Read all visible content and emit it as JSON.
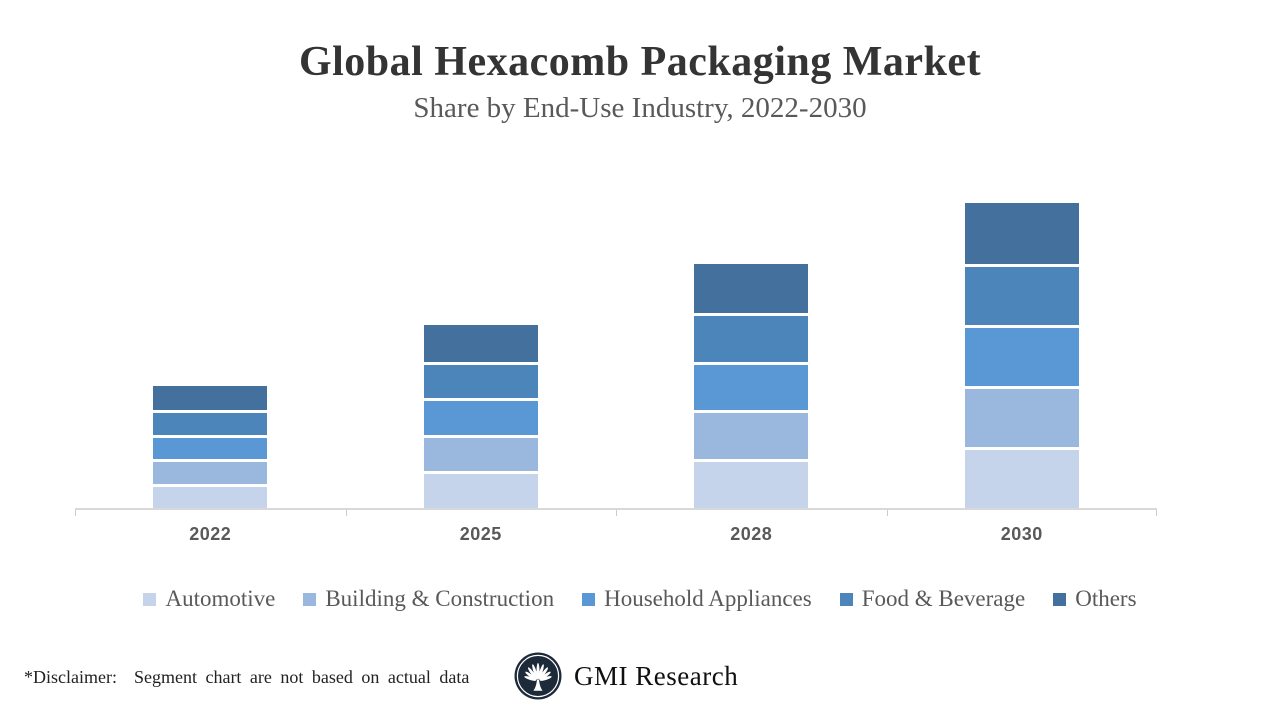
{
  "page": {
    "title": "Global Hexacomb Packaging Market",
    "subtitle": "Share by End-Use Industry, 2022-2030"
  },
  "chart_data": {
    "type": "bar",
    "stacked": true,
    "title": "Global Hexacomb Packaging Market",
    "subtitle": "Share by End-Use Industry, 2022-2030",
    "categories": [
      "2022",
      "2025",
      "2028",
      "2030"
    ],
    "series": [
      {
        "name": "Automotive",
        "color": "#c5d4ea",
        "values": [
          2,
          3,
          4,
          5
        ]
      },
      {
        "name": "Building & Construction",
        "color": "#9ab7de",
        "values": [
          2,
          3,
          4,
          5
        ]
      },
      {
        "name": "Household Appliances",
        "color": "#5997d5",
        "values": [
          2,
          3,
          4,
          5
        ]
      },
      {
        "name": "Food & Beverage",
        "color": "#4c85ba",
        "values": [
          2,
          3,
          4,
          5
        ]
      },
      {
        "name": "Others",
        "color": "#44709d",
        "values": [
          2,
          3,
          4,
          5
        ]
      }
    ],
    "ylim": [
      0,
      26
    ],
    "grid": false,
    "y_axis_visible": false,
    "legend_position": "bottom",
    "axis_color": "#d8d8d8",
    "label_color": "#595959"
  },
  "footer": {
    "disclaimer": "*Disclaimer:  Segment chart are not based on actual data",
    "logo_text": "GMI Research",
    "logo_icon": "palm-fan-icon",
    "logo_circle_color": "#1c2a3a"
  }
}
